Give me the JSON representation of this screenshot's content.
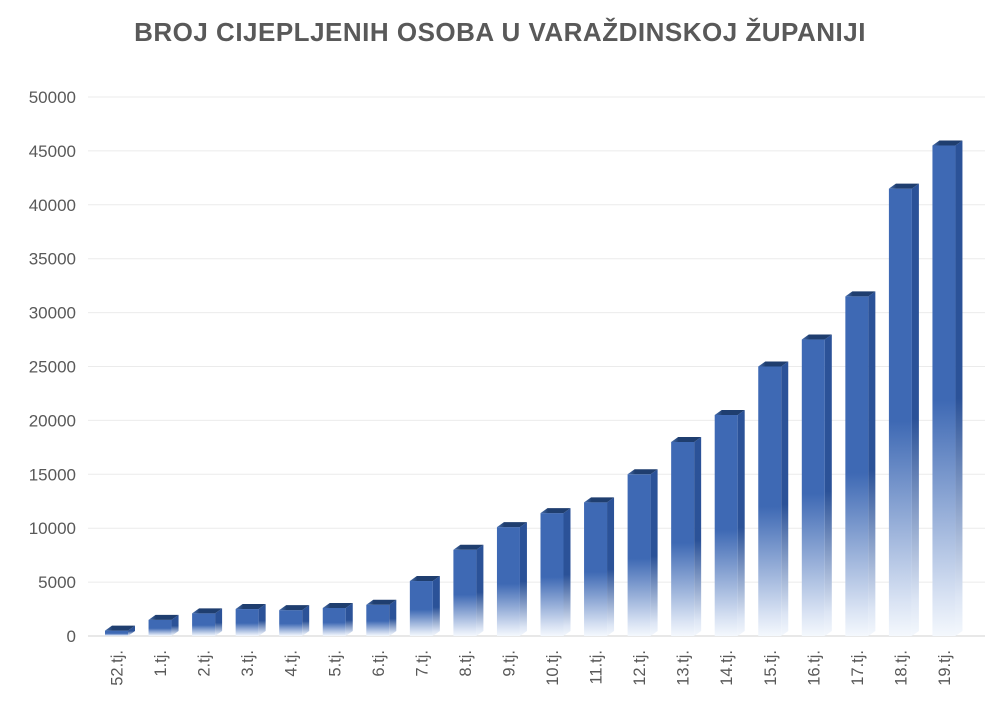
{
  "page": {
    "background": "#FFFFFF"
  },
  "chart_data": {
    "type": "bar",
    "title": "BROJ CIJEPLJENIH OSOBA U VARAŽDINSKOJ ŽUPANIJI",
    "categories": [
      "52.tj.",
      "1.tj.",
      "2.tj.",
      "3.tj.",
      "4.tj.",
      "5.tj.",
      "6.tj.",
      "7.tj.",
      "8.tj.",
      "9.tj.",
      "10.tj.",
      "11.tj.",
      "12.tj.",
      "13.tj.",
      "14.tj.",
      "15.tj.",
      "16.tj.",
      "17.tj.",
      "18.tj.",
      "19.tj."
    ],
    "values": [
      500,
      1500,
      2100,
      2500,
      2400,
      2600,
      2900,
      5100,
      8000,
      10100,
      11400,
      12400,
      15000,
      18000,
      20500,
      25000,
      27500,
      31500,
      41500,
      45500
    ],
    "xlabel": "",
    "ylabel": "",
    "ylim": [
      0,
      50000
    ],
    "ytick_step": 5000,
    "ytick_labels": [
      "0",
      "5000",
      "10000",
      "15000",
      "20000",
      "25000",
      "30000",
      "35000",
      "40000",
      "45000",
      "50000"
    ],
    "grid": true,
    "legend": "none",
    "bar_style": "3d-gradient-fade",
    "colors": {
      "bar_front": "#3E69B4",
      "bar_side": "#2B5298",
      "bar_top_left": "#4A71B0",
      "bar_top_right": "#1F3E6F",
      "bar_fade": "#F4F8FD",
      "title_text": "#595959",
      "tick_text": "#595959",
      "gridline": "#EBEBEB",
      "axis_line": "#D9D9D9"
    }
  }
}
